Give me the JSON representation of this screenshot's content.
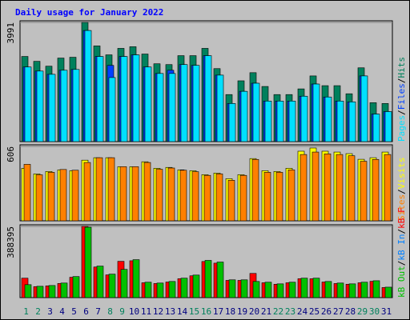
{
  "chart_data": [
    {
      "type": "bar",
      "title": "Daily usage for January 2022",
      "title_color": "#0000ff",
      "legend_separator": "/",
      "ylim": [
        0,
        3991
      ],
      "yticks": [
        3991
      ],
      "series": [
        {
          "name": "Hits",
          "color": "#00805c",
          "values": [
            2851,
            2688,
            2525,
            2797,
            2824,
            3991,
            3204,
            2905,
            3122,
            3177,
            2932,
            2606,
            2579,
            2878,
            2878,
            3122,
            2444,
            1575,
            2036,
            2308,
            1846,
            1575,
            1575,
            1765,
            2199,
            1873,
            1873,
            1602,
            2471,
            1303,
            1276
          ]
        },
        {
          "name": "Files",
          "color": "#0040ff",
          "values": [
            2498,
            2362,
            2253,
            2389,
            2416,
            3720,
            2851,
            2552,
            2851,
            2905,
            2498,
            2281,
            2389,
            2579,
            2552,
            2878,
            2226,
            1276,
            1683,
            1955,
            1358,
            1358,
            1358,
            1520,
            1928,
            1493,
            1358,
            1330,
            2199,
            923,
            1005
          ]
        },
        {
          "name": "Pages",
          "color": "#00e0ff",
          "values": [
            2498,
            2362,
            2253,
            2389,
            2416,
            3720,
            2851,
            2145,
            2851,
            2905,
            2498,
            2281,
            2281,
            2579,
            2552,
            2878,
            2226,
            1276,
            1683,
            1955,
            1358,
            1358,
            1358,
            1520,
            1928,
            1493,
            1358,
            1330,
            2199,
            923,
            1005
          ]
        }
      ]
    },
    {
      "type": "bar",
      "ylim": [
        0,
        606
      ],
      "yticks": [
        606
      ],
      "series": [
        {
          "name": "Visits",
          "color": "#ffff00",
          "values": [
            428,
            382,
            402,
            415,
            408,
            494,
            514,
            514,
            441,
            441,
            481,
            428,
            435,
            415,
            408,
            376,
            389,
            343,
            376,
            507,
            408,
            402,
            428,
            567,
            593,
            567,
            560,
            547,
            501,
            514,
            560
          ]
        },
        {
          "name": "Sites",
          "color": "#ff8000",
          "values": [
            460,
            375,
            395,
            418,
            412,
            475,
            514,
            514,
            441,
            441,
            475,
            420,
            430,
            412,
            400,
            370,
            382,
            330,
            370,
            500,
            395,
            395,
            415,
            540,
            560,
            545,
            540,
            530,
            485,
            500,
            540
          ]
        }
      ]
    },
    {
      "type": "bar",
      "ylim": [
        0,
        388395
      ],
      "yticks": [
        388395
      ],
      "categories": [
        "1",
        "2",
        "3",
        "4",
        "5",
        "6",
        "7",
        "8",
        "9",
        "10",
        "11",
        "12",
        "13",
        "14",
        "15",
        "16",
        "17",
        "18",
        "19",
        "20",
        "21",
        "22",
        "23",
        "24",
        "25",
        "26",
        "27",
        "28",
        "29",
        "30",
        "31"
      ],
      "category_colors": [
        "#00805c",
        "#00805c",
        "#000080",
        "#000080",
        "#000080",
        "#000080",
        "#000080",
        "#00805c",
        "#00805c",
        "#000080",
        "#000080",
        "#000080",
        "#000080",
        "#000080",
        "#00805c",
        "#00805c",
        "#000080",
        "#000080",
        "#000080",
        "#000080",
        "#000080",
        "#00805c",
        "#00805c",
        "#000080",
        "#000080",
        "#000080",
        "#000080",
        "#000080",
        "#00805c",
        "#00805c",
        "#000080"
      ],
      "series": [
        {
          "name": "kB F",
          "color": "#ff0000",
          "values": [
            106000,
            60000,
            64000,
            77000,
            111000,
            388395,
            167000,
            124000,
            198000,
            201000,
            81000,
            77000,
            85000,
            103000,
            119000,
            197000,
            188000,
            94000,
            94000,
            132000,
            81000,
            73000,
            81000,
            103000,
            103000,
            85000,
            77000,
            73000,
            81000,
            89000,
            55000
          ]
        },
        {
          "name": "kB In",
          "color": "#0080ff",
          "values": [
            0,
            0,
            0,
            0,
            0,
            0,
            0,
            0,
            0,
            0,
            0,
            0,
            0,
            0,
            0,
            0,
            0,
            0,
            0,
            0,
            0,
            0,
            0,
            0,
            0,
            0,
            0,
            0,
            0,
            0,
            0
          ]
        },
        {
          "name": "kB Out",
          "color": "#00c000",
          "values": [
            70600,
            61800,
            66000,
            79500,
            114800,
            384000,
            172000,
            128000,
            154000,
            207000,
            84000,
            79500,
            88000,
            106000,
            123000,
            203000,
            194000,
            97000,
            97000,
            88000,
            84000,
            75000,
            84000,
            106000,
            106000,
            88000,
            79500,
            75000,
            84000,
            92000,
            57000
          ]
        }
      ]
    }
  ]
}
